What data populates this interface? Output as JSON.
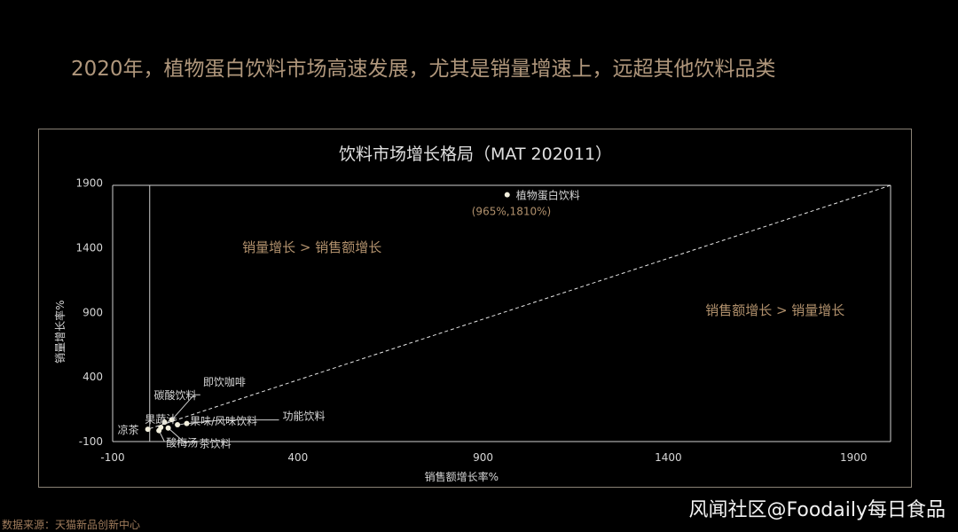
{
  "slide": {
    "title": "2020年，植物蛋白饮料市场高速发展，尤其是销量增速上，远超其他饮料品类",
    "source": "数据来源：天猫新品创新中心",
    "watermark": "风闻社区@Foodaily每日食品"
  },
  "chart_data": {
    "type": "scatter",
    "title": "饮料市场增长格局（MAT 202011）",
    "xlabel": "销售额增长率%",
    "ylabel": "销量增长率%",
    "xlim": [
      -100,
      2000
    ],
    "ylim": [
      -100,
      2000
    ],
    "xticks": [
      -100,
      400,
      900,
      1400,
      1900
    ],
    "yticks": [
      -100,
      400,
      900,
      1400,
      1900
    ],
    "grid": false,
    "reference_line": "y = x",
    "region_labels": [
      {
        "text": "销量增长 > 销售额增长",
        "x": 250,
        "y": 1370
      },
      {
        "text": "销售额增长 > 销量增长",
        "x": 1500,
        "y": 880
      }
    ],
    "points": [
      {
        "name": "植物蛋白饮料",
        "x": 965,
        "y": 1810,
        "note": "(965%,1810%)"
      },
      {
        "name": "凉茶",
        "x": -5,
        "y": -5
      },
      {
        "name": "碳酸饮料",
        "x": 40,
        "y": 50
      },
      {
        "name": "即饮咖啡",
        "x": 60,
        "y": 70
      },
      {
        "name": "果蔬汁",
        "x": 30,
        "y": 10
      },
      {
        "name": "果味/风味饮料",
        "x": 75,
        "y": 30
      },
      {
        "name": "功能饮料",
        "x": 100,
        "y": 40
      },
      {
        "name": "酸梅汤",
        "x": 25,
        "y": -15
      },
      {
        "name": "茶饮料",
        "x": 50,
        "y": 5
      }
    ],
    "colors": {
      "marker": "#f1eedc",
      "text": "#d6d6d6",
      "axis": "#cfcfcf",
      "region_label": "#b0906c",
      "highlight_note": "#b0906c"
    }
  }
}
